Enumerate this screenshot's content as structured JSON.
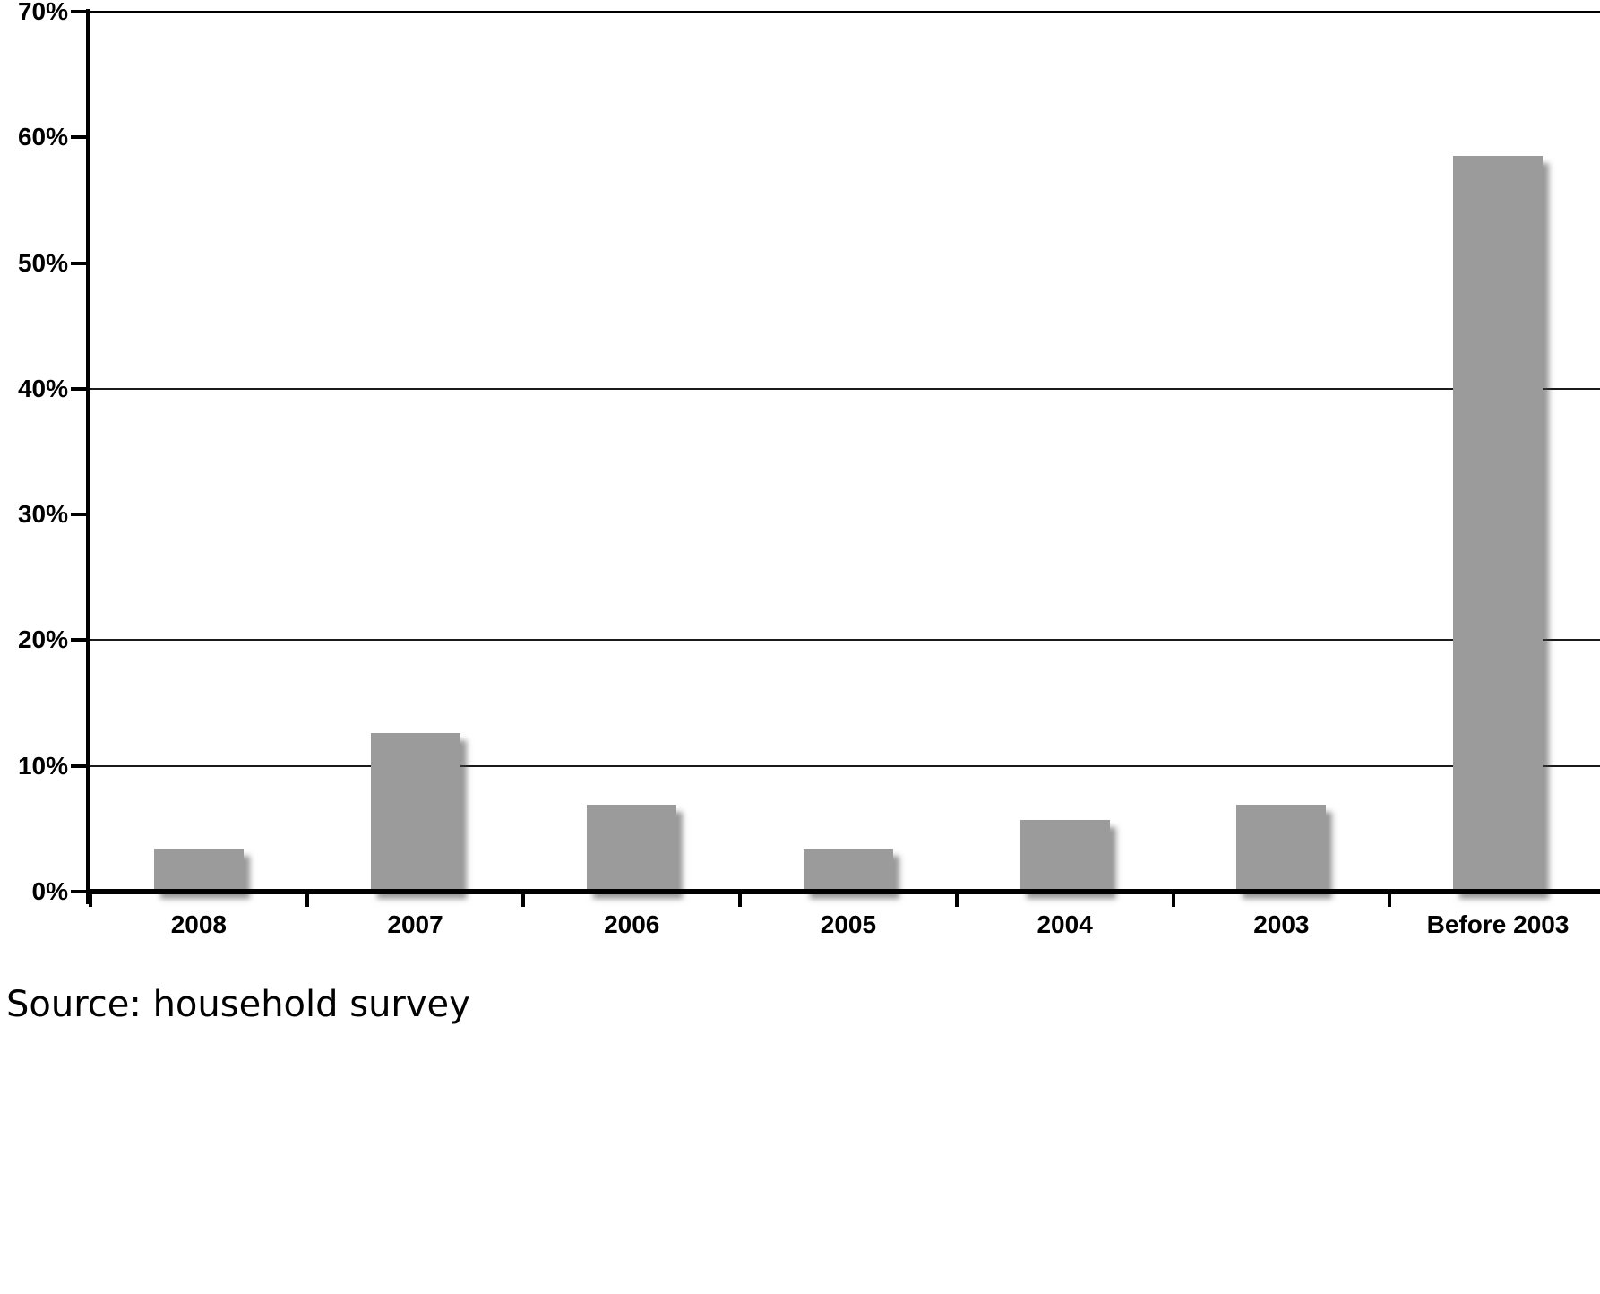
{
  "chart_data": {
    "type": "bar",
    "title": "",
    "xlabel": "",
    "ylabel": "",
    "categories": [
      "2008",
      "2007",
      "2006",
      "2005",
      "2004",
      "2003",
      "Before 2003"
    ],
    "values": [
      3.4,
      12.6,
      6.9,
      3.4,
      5.7,
      6.9,
      58.5
    ],
    "ylim": [
      0,
      70
    ],
    "ytick_values": [
      70,
      60,
      50,
      40,
      30,
      20,
      10,
      0
    ],
    "ytick_labels": [
      "70%",
      "60%",
      "50%",
      "40%",
      "30%",
      "20%",
      "10%",
      "0%"
    ],
    "gridline_values": [
      70,
      40,
      20,
      10
    ],
    "grid": "partial-horizontal",
    "legend_position": "none",
    "bar_color": "#9b9b9b",
    "axis_color": "#000000"
  },
  "source_note": "Source: household survey"
}
